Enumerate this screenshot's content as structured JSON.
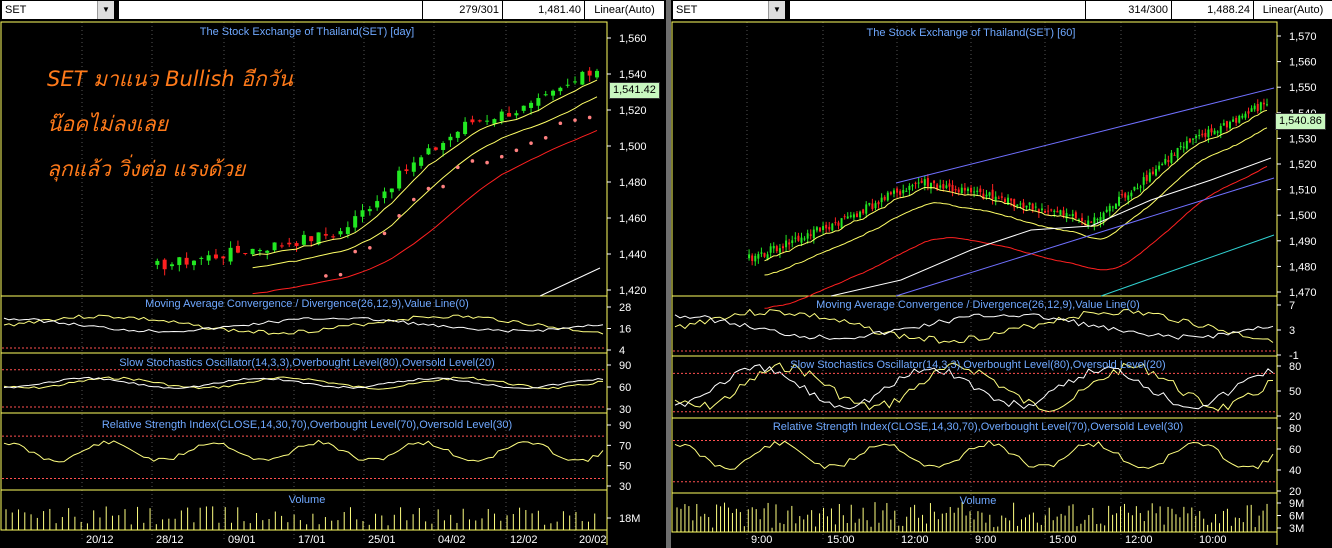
{
  "left_chart": {
    "symbol": "SET",
    "bars_info": "279/301",
    "last_value": "1,481.40",
    "scale_mode": "Linear(Auto)",
    "price_tag": "1,541.42",
    "titles": {
      "price": "The Stock Exchange of Thailand(SET) [day]",
      "macd": "Moving Average Convergence / Divergence(26,12,9),Value Line(0)",
      "stoch": "Slow Stochastics Oscillator(14,3,3),Overbought Level(80),Oversold Level(20)",
      "rsi": "Relative Strength Index(CLOSE,14,30,70),Overbought Level(70),Oversold Level(30)",
      "volume": "Volume"
    },
    "annotation_lines": [
      "SET มาแนว Bullish อีกวัน",
      "น๊อคไม่ลงเลย",
      "ลุกแล้ว วิ่งต่อ แรงด้วย"
    ],
    "price_ticks": [
      "1,560",
      "1,540",
      "1,520",
      "1,500",
      "1,480",
      "1,460",
      "1,440",
      "1,420"
    ],
    "macd_ticks": [
      "28",
      "16",
      "4"
    ],
    "stoch_ticks": [
      "90",
      "60",
      "30"
    ],
    "rsi_ticks": [
      "90",
      "70",
      "50",
      "30"
    ],
    "volume_ticks": [
      "18M"
    ],
    "date_ticks": [
      "20/12",
      "28/12",
      "09/01",
      "17/01",
      "25/01",
      "04/02",
      "12/02",
      "20/02"
    ]
  },
  "right_chart": {
    "symbol": "SET",
    "bars_info": "314/300",
    "last_value": "1,488.24",
    "scale_mode": "Linear(Auto)",
    "price_tag": "1,540.86",
    "titles": {
      "price": "The Stock Exchange of Thailand(SET) [60]",
      "macd": "Moving Average Convergence / Divergence(26,12,9),Value Line(0)",
      "stoch": "Slow Stochastics Oscillator(14,3,3),Overbought Level(80),Oversold Level(20)",
      "rsi": "Relative Strength Index(CLOSE,14,30,70),Overbought Level(70),Oversold Level(30)",
      "volume": "Volume"
    },
    "price_ticks": [
      "1,570",
      "1,560",
      "1,550",
      "1,540",
      "1,530",
      "1,520",
      "1,510",
      "1,500",
      "1,490",
      "1,480",
      "1,470"
    ],
    "macd_ticks": [
      "7",
      "3",
      "-1"
    ],
    "stoch_ticks": [
      "80",
      "50",
      "20"
    ],
    "rsi_ticks": [
      "80",
      "60",
      "40",
      "20"
    ],
    "volume_ticks": [
      "9M",
      "6M",
      "3M"
    ],
    "time_ticks": [
      "9:00",
      "15:00",
      "12:00",
      "9:00",
      "15:00",
      "12:00",
      "10:00"
    ]
  },
  "colors": {
    "up_candle": "#22e822",
    "down_candle": "#ff2020",
    "ma_fast": "#ffff66",
    "ma_slow": "#ff2020",
    "ma_long": "#ffffff",
    "sar": "#ff8080",
    "oscillator": "#ffff80",
    "signal": "#ffffff",
    "level_line": "#ff5050",
    "channel": "#7070ff",
    "title": "#6fa8ff",
    "border": "#ffff60"
  },
  "chart_data": [
    {
      "type": "line",
      "title": "The Stock Exchange of Thailand(SET) [day]",
      "x": [
        "20/12",
        "28/12",
        "09/01",
        "17/01",
        "25/01",
        "04/02",
        "12/02",
        "20/02"
      ],
      "series": [
        {
          "name": "close",
          "values": [
            1418,
            1425,
            1432,
            1440,
            1478,
            1508,
            1518,
            1541
          ]
        },
        {
          "name": "",
          "values": [
            1412,
            1418,
            1424,
            1432,
            1462,
            1495,
            1510,
            1530
          ]
        },
        {
          "name": "",
          "values": [
            1400,
            1405,
            1410,
            1420,
            1440,
            1470,
            1490,
            1495
          ]
        }
      ],
      "ylim": [
        1400,
        1570
      ]
    },
    {
      "type": "line",
      "title": "The Stock Exchange of Thailand(SET) [60]",
      "x": [
        "9:00",
        "15:00",
        "12:00",
        "9:00",
        "15:00",
        "12:00",
        "10:00"
      ],
      "series": [
        {
          "name": "close",
          "values": [
            1475,
            1490,
            1508,
            1500,
            1491,
            1522,
            1541
          ]
        },
        {
          "name": "",
          "values": [
            1472,
            1485,
            1502,
            1496,
            1492,
            1518,
            1535
          ]
        }
      ],
      "ylim": [
        1460,
        1575
      ]
    }
  ]
}
